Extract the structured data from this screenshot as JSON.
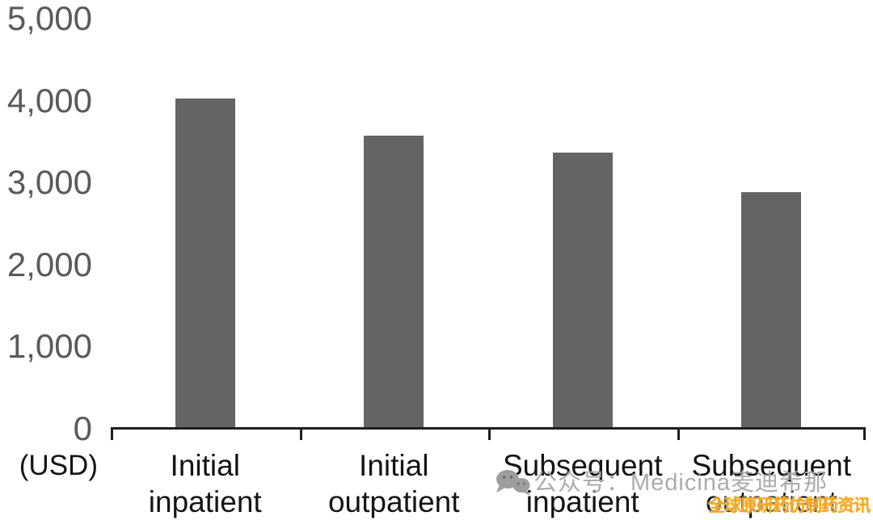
{
  "chart_data": {
    "type": "bar",
    "title": "",
    "xlabel": "",
    "ylabel": "(USD)",
    "categories": [
      "Initial inpatient",
      "Initial outpatient",
      "Subsequent inpatient",
      "Subsequent outpatient"
    ],
    "category_display": [
      "Initial inpatient",
      "Initial\noutpatient",
      "Subsequent\ninpatient",
      "Subsequent\noutpatient"
    ],
    "values": [
      4030,
      3570,
      3370,
      2880
    ],
    "ylim": [
      0,
      5000
    ],
    "ytick_interval": 1000,
    "ytick_labels": [
      "0",
      "1,000",
      "2,000",
      "3,000",
      "4,000",
      "5,000"
    ],
    "grid": false,
    "legend": "none",
    "bar_color": "#646464",
    "axis_color": "#1f1f1f",
    "ytick_label_color": "#5a5a5a",
    "category_label_color": "#141414"
  },
  "watermark": {
    "wechat_icon": "wechat-icon",
    "gray_text": "公众号：Medicina麦迪希那",
    "gray_color": "#a8a8a8",
    "orange_text": "全球原研药仿制药资讯",
    "orange_color": "#f7a41d"
  }
}
